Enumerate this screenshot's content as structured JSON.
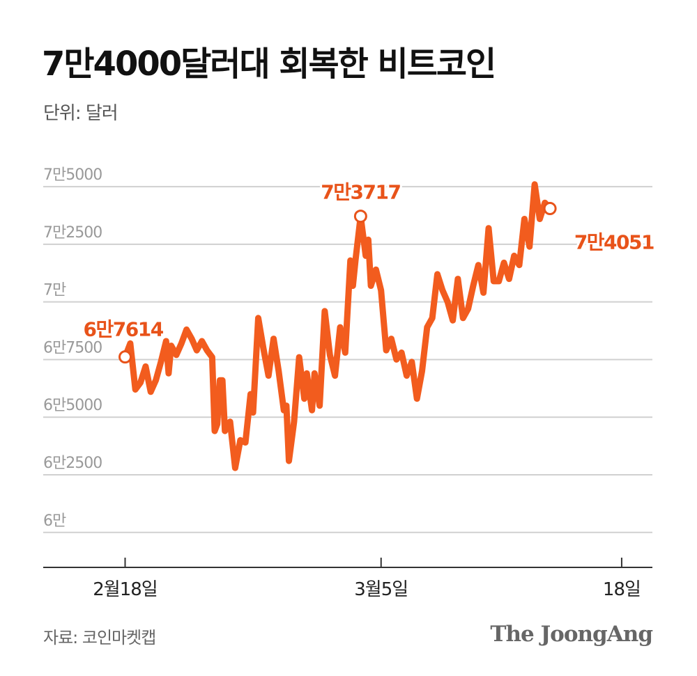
{
  "header": {
    "title": "7만4000달러대 회복한 비트코인",
    "unit": "단위: 달러"
  },
  "footer": {
    "source": "자료: 코인마켓캡",
    "logo": "The JoongAng"
  },
  "colors": {
    "line": "#f25c1e",
    "annotation": "#e8531a",
    "grid": "#d0d0d0",
    "axis": "#333333",
    "tick_text": "#999999"
  },
  "chart_data": {
    "type": "line",
    "title": "7만4000달러대 회복한 비트코인",
    "unit": "단위: 달러",
    "ylim": [
      58000,
      76000
    ],
    "y_ticks": [
      {
        "value": 60000,
        "label": "6만"
      },
      {
        "value": 62500,
        "label": "6만2500"
      },
      {
        "value": 65000,
        "label": "6만5000"
      },
      {
        "value": 67500,
        "label": "6만7500"
      },
      {
        "value": 70000,
        "label": "7만"
      },
      {
        "value": 72500,
        "label": "7만2500"
      },
      {
        "value": 75000,
        "label": "7만5000"
      }
    ],
    "x_range": [
      -3.2,
      20.6
    ],
    "x_ticks": [
      {
        "value": 0,
        "label": "2월18일"
      },
      {
        "value": 10,
        "label": "3월5일"
      },
      {
        "value": 19.4,
        "label": "18일"
      }
    ],
    "grid": true,
    "series": [
      {
        "name": "",
        "points": [
          [
            0.0,
            67614
          ],
          [
            0.2,
            68200
          ],
          [
            0.4,
            66200
          ],
          [
            0.6,
            66500
          ],
          [
            0.8,
            67200
          ],
          [
            1.0,
            66100
          ],
          [
            1.2,
            66600
          ],
          [
            1.4,
            67400
          ],
          [
            1.6,
            68300
          ],
          [
            1.7,
            66900
          ],
          [
            1.8,
            68100
          ],
          [
            2.0,
            67700
          ],
          [
            2.2,
            68200
          ],
          [
            2.4,
            68800
          ],
          [
            2.6,
            68400
          ],
          [
            2.8,
            67900
          ],
          [
            3.0,
            68300
          ],
          [
            3.2,
            67900
          ],
          [
            3.4,
            67600
          ],
          [
            3.5,
            64400
          ],
          [
            3.6,
            64700
          ],
          [
            3.7,
            66600
          ],
          [
            3.8,
            66600
          ],
          [
            3.9,
            64400
          ],
          [
            4.1,
            64800
          ],
          [
            4.3,
            62800
          ],
          [
            4.5,
            64000
          ],
          [
            4.7,
            63900
          ],
          [
            4.9,
            66000
          ],
          [
            5.0,
            65200
          ],
          [
            5.2,
            69300
          ],
          [
            5.4,
            68000
          ],
          [
            5.6,
            66800
          ],
          [
            5.8,
            68400
          ],
          [
            6.0,
            67000
          ],
          [
            6.2,
            65300
          ],
          [
            6.3,
            65500
          ],
          [
            6.4,
            63100
          ],
          [
            6.6,
            64800
          ],
          [
            6.8,
            67600
          ],
          [
            7.0,
            65800
          ],
          [
            7.1,
            66900
          ],
          [
            7.3,
            65300
          ],
          [
            7.4,
            66900
          ],
          [
            7.6,
            65500
          ],
          [
            7.8,
            69600
          ],
          [
            8.0,
            67700
          ],
          [
            8.2,
            66800
          ],
          [
            8.4,
            68900
          ],
          [
            8.6,
            67800
          ],
          [
            8.8,
            71800
          ],
          [
            8.9,
            70700
          ],
          [
            9.0,
            71800
          ],
          [
            9.2,
            73717
          ],
          [
            9.4,
            72000
          ],
          [
            9.5,
            72700
          ],
          [
            9.6,
            70700
          ],
          [
            9.8,
            71400
          ],
          [
            10.0,
            70500
          ],
          [
            10.2,
            67900
          ],
          [
            10.4,
            68400
          ],
          [
            10.6,
            67500
          ],
          [
            10.8,
            67800
          ],
          [
            11.0,
            66800
          ],
          [
            11.2,
            67400
          ],
          [
            11.4,
            65800
          ],
          [
            11.6,
            67000
          ],
          [
            11.8,
            68900
          ],
          [
            12.0,
            69300
          ],
          [
            12.2,
            71200
          ],
          [
            12.4,
            70500
          ],
          [
            12.6,
            70000
          ],
          [
            12.8,
            69200
          ],
          [
            13.0,
            71000
          ],
          [
            13.2,
            69300
          ],
          [
            13.4,
            69700
          ],
          [
            13.6,
            70700
          ],
          [
            13.8,
            71600
          ],
          [
            14.0,
            70400
          ],
          [
            14.2,
            73200
          ],
          [
            14.4,
            70900
          ],
          [
            14.6,
            70900
          ],
          [
            14.8,
            71700
          ],
          [
            15.0,
            71000
          ],
          [
            15.2,
            72000
          ],
          [
            15.4,
            71600
          ],
          [
            15.6,
            73600
          ],
          [
            15.8,
            72400
          ],
          [
            16.0,
            75100
          ],
          [
            16.2,
            73600
          ],
          [
            16.4,
            74300
          ],
          [
            16.6,
            74051
          ]
        ]
      }
    ],
    "annotations": [
      {
        "label": "6만7614",
        "x": 0.0,
        "y": 67614,
        "position": "above-right"
      },
      {
        "label": "7만3717",
        "x": 9.2,
        "y": 73717,
        "position": "above"
      },
      {
        "label": "7만4051",
        "x": 16.6,
        "y": 74051,
        "position": "below"
      }
    ]
  }
}
